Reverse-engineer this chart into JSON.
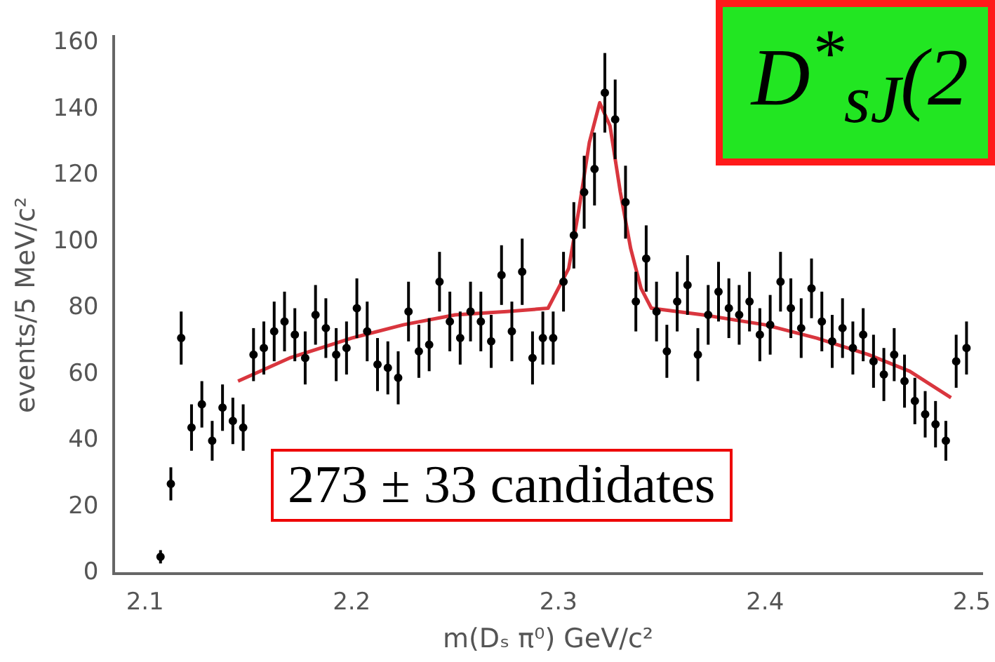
{
  "chart_data": {
    "type": "scatter",
    "title": "D$^{*}$$_{sJ}$(2",
    "xlabel": "m(Dₛ π⁰) GeV/c²",
    "ylabel": "events/5 MeV/c²",
    "annotations": [
      "273 ± 33 candidates"
    ],
    "xlim": [
      2.085,
      2.505
    ],
    "xticks": [
      2.1,
      2.2,
      2.3,
      2.4,
      2.5
    ],
    "ylim": [
      0,
      162
    ],
    "yticks": [
      0,
      20,
      40,
      60,
      80,
      100,
      120,
      140,
      160
    ],
    "grid": false,
    "series": [
      {
        "marker": "circle",
        "color": "#000000",
        "x": [
          2.1075,
          2.1125,
          2.1175,
          2.1225,
          2.1275,
          2.1325,
          2.1375,
          2.1425,
          2.1475,
          2.1525,
          2.1575,
          2.1625,
          2.1675,
          2.1725,
          2.1775,
          2.1825,
          2.1875,
          2.1925,
          2.1975,
          2.2025,
          2.2075,
          2.2125,
          2.2175,
          2.2225,
          2.2275,
          2.2325,
          2.2375,
          2.2425,
          2.2475,
          2.2525,
          2.2575,
          2.2625,
          2.2675,
          2.2725,
          2.2775,
          2.2825,
          2.2875,
          2.2925,
          2.2975,
          2.3025,
          2.3075,
          2.3125,
          2.3175,
          2.3225,
          2.3275,
          2.3325,
          2.3375,
          2.3425,
          2.3475,
          2.3525,
          2.3575,
          2.3625,
          2.3675,
          2.3725,
          2.3775,
          2.3825,
          2.3875,
          2.3925,
          2.3975,
          2.4025,
          2.4075,
          2.4125,
          2.4175,
          2.4225,
          2.4275,
          2.4325,
          2.4375,
          2.4425,
          2.4475,
          2.4525,
          2.4575,
          2.4625,
          2.4675,
          2.4725,
          2.4775,
          2.4825,
          2.4875,
          2.4925,
          2.4975
        ],
        "values": [
          5,
          27,
          71,
          44,
          51,
          40,
          50,
          46,
          44,
          66,
          68,
          73,
          76,
          72,
          65,
          78,
          74,
          66,
          68,
          80,
          73,
          63,
          62,
          59,
          79,
          67,
          69,
          88,
          76,
          71,
          79,
          76,
          70,
          90,
          73,
          91,
          65,
          71,
          71,
          88,
          102,
          115,
          122,
          145,
          137,
          112,
          82,
          95,
          79,
          67,
          82,
          87,
          66,
          78,
          85,
          80,
          78,
          82,
          72,
          75,
          88,
          80,
          74,
          86,
          76,
          70,
          74,
          68,
          72,
          64,
          60,
          66,
          58,
          52,
          48,
          45,
          40,
          64,
          68
        ],
        "errors": [
          2,
          5,
          8,
          7,
          7,
          6,
          7,
          7,
          7,
          8,
          8,
          9,
          9,
          8,
          8,
          9,
          9,
          8,
          8,
          9,
          9,
          8,
          8,
          8,
          9,
          8,
          8,
          9,
          9,
          8,
          9,
          9,
          8,
          9,
          9,
          10,
          8,
          8,
          8,
          9,
          10,
          11,
          11,
          12,
          12,
          11,
          9,
          10,
          9,
          8,
          9,
          9,
          8,
          9,
          9,
          9,
          9,
          9,
          8,
          9,
          9,
          9,
          9,
          9,
          9,
          8,
          9,
          8,
          8,
          8,
          8,
          8,
          8,
          7,
          7,
          7,
          6,
          8,
          8
        ]
      },
      {
        "type": "line",
        "color": "#d9363e",
        "x": [
          2.145,
          2.17,
          2.2,
          2.225,
          2.25,
          2.275,
          2.295,
          2.305,
          2.31,
          2.315,
          2.32,
          2.325,
          2.33,
          2.335,
          2.34,
          2.345,
          2.37,
          2.4,
          2.425,
          2.45,
          2.47,
          2.49
        ],
        "values": [
          58,
          65,
          71,
          75,
          78,
          79,
          80,
          92,
          110,
          130,
          142,
          135,
          115,
          98,
          86,
          80,
          78,
          75,
          71,
          66,
          61,
          53
        ]
      }
    ]
  }
}
